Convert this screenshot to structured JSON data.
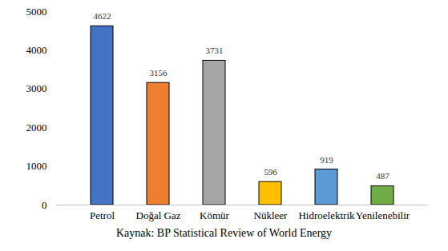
{
  "chart_data": {
    "type": "bar",
    "categories": [
      "Petrol",
      "Doğal Gaz",
      "Kömür",
      "Nükleer",
      "Hidroelektrik",
      "Yenilenebilir"
    ],
    "values": [
      4622,
      3156,
      3731,
      596,
      919,
      487
    ],
    "colors": [
      "#4472c4",
      "#ed7d31",
      "#a5a5a5",
      "#ffc000",
      "#5b9bd5",
      "#70ad47"
    ],
    "ylim": [
      0,
      5000
    ],
    "yticks": [
      0,
      1000,
      2000,
      3000,
      4000,
      5000
    ],
    "grid": false,
    "data_labels": true,
    "caption": "Kaynak: BP Statistical Review of World Energy"
  }
}
